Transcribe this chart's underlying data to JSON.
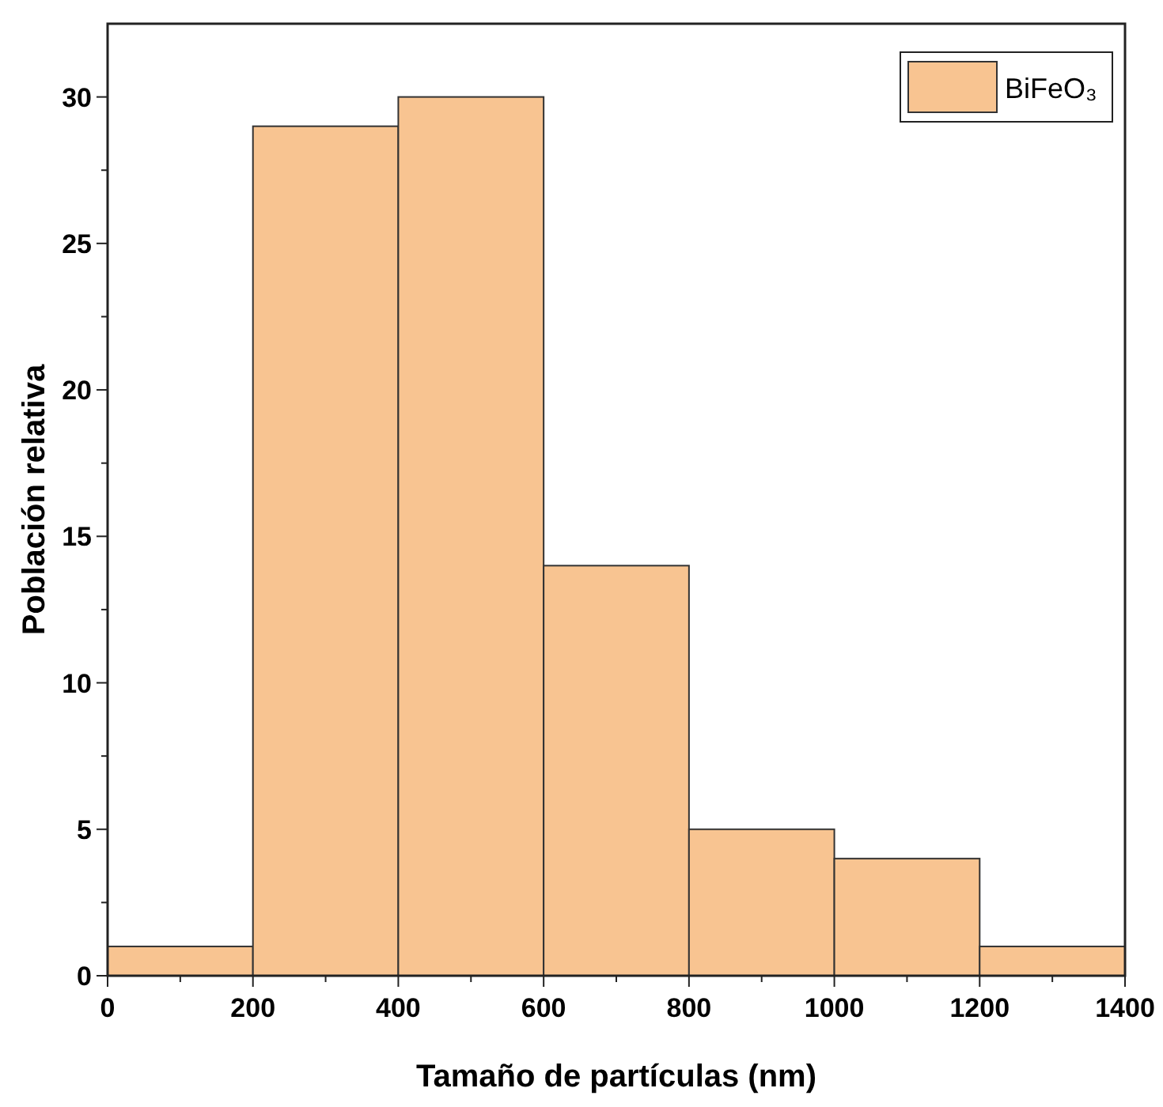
{
  "chart_data": {
    "type": "histogram",
    "xlabel": "Tamaño de partículas (nm)",
    "ylabel": "Población relativa",
    "bins": [
      0,
      200,
      400,
      600,
      800,
      1000,
      1200,
      1400
    ],
    "series": [
      {
        "name": "BiFeO₃",
        "color": "#f8c491",
        "values": [
          1,
          29,
          30,
          14,
          5,
          4,
          1
        ]
      }
    ],
    "xlim": [
      0,
      1400
    ],
    "ylim": [
      0,
      32.5
    ],
    "xticks": [
      0,
      {
        "value": 100,
        "label": null
      },
      200,
      {
        "value": 300,
        "label": null
      },
      400,
      {
        "value": 500,
        "label": null
      },
      600,
      {
        "value": 700,
        "label": null
      },
      800,
      {
        "value": 900,
        "label": null
      },
      1000,
      {
        "value": 1100,
        "label": null
      },
      1200,
      {
        "value": 1300,
        "label": null
      },
      1400
    ],
    "yticks": [
      0,
      {
        "value": 2.5,
        "label": null
      },
      5,
      {
        "value": 7.5,
        "label": null
      },
      10,
      {
        "value": 12.5,
        "label": null
      },
      15,
      {
        "value": 17.5,
        "label": null
      },
      20,
      {
        "value": 22.5,
        "label": null
      },
      25,
      {
        "value": 27.5,
        "label": null
      },
      30
    ],
    "legend": "top right",
    "grid": false
  }
}
